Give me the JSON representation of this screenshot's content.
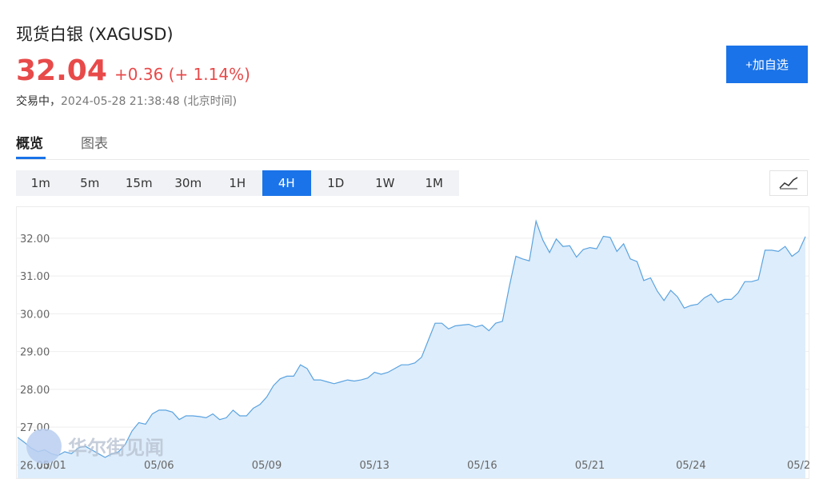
{
  "header": {
    "title": "现货白银 (XAGUSD)",
    "price": "32.04",
    "change": "+0.36 (+ 1.14%)",
    "status": "交易中，",
    "time": "2024-05-28 21:38:48 (北京时间)",
    "follow_button": "+加自选"
  },
  "tabs": [
    "概览",
    "图表"
  ],
  "periods": [
    "1m",
    "5m",
    "15m",
    "30m",
    "1H",
    "4H",
    "1D",
    "1W",
    "1M"
  ],
  "active_period": "4H",
  "chart_data": {
    "type": "area",
    "line_color": "#5aa3e0",
    "fill_color": "#deedfb",
    "grid": true,
    "watermark": "华尔街见闻",
    "categories": [
      null,
      null,
      null,
      null,
      null,
      "05/01",
      null,
      null,
      null,
      null,
      null,
      null,
      null,
      null,
      null,
      null,
      null,
      null,
      null,
      null,
      null,
      "05/06",
      null,
      null,
      null,
      null,
      null,
      null,
      null,
      null,
      null,
      null,
      null,
      null,
      null,
      null,
      null,
      "05/09",
      null,
      null,
      null,
      null,
      null,
      null,
      null,
      null,
      null,
      null,
      null,
      null,
      null,
      null,
      null,
      "05/13",
      null,
      null,
      null,
      null,
      null,
      null,
      null,
      null,
      null,
      null,
      null,
      null,
      null,
      null,
      null,
      "05/16",
      null,
      null,
      null,
      null,
      null,
      null,
      null,
      null,
      null,
      null,
      null,
      null,
      null,
      null,
      null,
      "05/21",
      null,
      null,
      null,
      null,
      null,
      null,
      null,
      null,
      null,
      null,
      null,
      null,
      null,
      null,
      "05/24",
      null,
      null,
      null,
      null,
      null,
      null,
      null,
      null,
      null,
      null,
      null,
      null,
      null,
      null,
      null,
      "05/2",
      null
    ],
    "values": [
      26.73,
      26.6,
      26.45,
      26.35,
      26.4,
      26.3,
      26.25,
      26.35,
      26.3,
      26.45,
      26.5,
      26.4,
      26.3,
      26.2,
      26.3,
      26.35,
      26.55,
      26.9,
      27.12,
      27.08,
      27.35,
      27.45,
      27.45,
      27.4,
      27.2,
      27.3,
      27.3,
      27.28,
      27.25,
      27.35,
      27.2,
      27.25,
      27.45,
      27.3,
      27.3,
      27.5,
      27.6,
      27.8,
      28.1,
      28.28,
      28.35,
      28.35,
      28.65,
      28.55,
      28.25,
      28.25,
      28.2,
      28.15,
      28.2,
      28.25,
      28.22,
      28.25,
      28.3,
      28.45,
      28.4,
      28.45,
      28.55,
      28.65,
      28.65,
      28.7,
      28.85,
      29.3,
      29.75,
      29.75,
      29.6,
      29.68,
      29.7,
      29.72,
      29.65,
      29.7,
      29.55,
      29.75,
      29.8,
      30.7,
      31.52,
      31.45,
      31.4,
      32.45,
      31.95,
      31.62,
      31.98,
      31.78,
      31.8,
      31.5,
      31.7,
      31.75,
      31.72,
      32.05,
      32.02,
      31.65,
      31.85,
      31.45,
      31.38,
      30.88,
      30.95,
      30.6,
      30.35,
      30.62,
      30.45,
      30.15,
      30.22,
      30.25,
      30.42,
      30.52,
      30.3,
      30.38,
      30.38,
      30.55,
      30.85,
      30.85,
      30.9,
      31.68,
      31.68,
      31.65,
      31.78,
      31.52,
      31.65,
      32.04
    ],
    "ylim": [
      25.65,
      32.8
    ],
    "yticks": [
      {
        "value": 26,
        "label": "26.00"
      },
      {
        "value": 27,
        "label": "27.00"
      },
      {
        "value": 28,
        "label": "28.00"
      },
      {
        "value": 29,
        "label": "29.00"
      },
      {
        "value": 30,
        "label": "30.00"
      },
      {
        "value": 31,
        "label": "31.00"
      },
      {
        "value": 32,
        "label": "32.00"
      }
    ]
  }
}
